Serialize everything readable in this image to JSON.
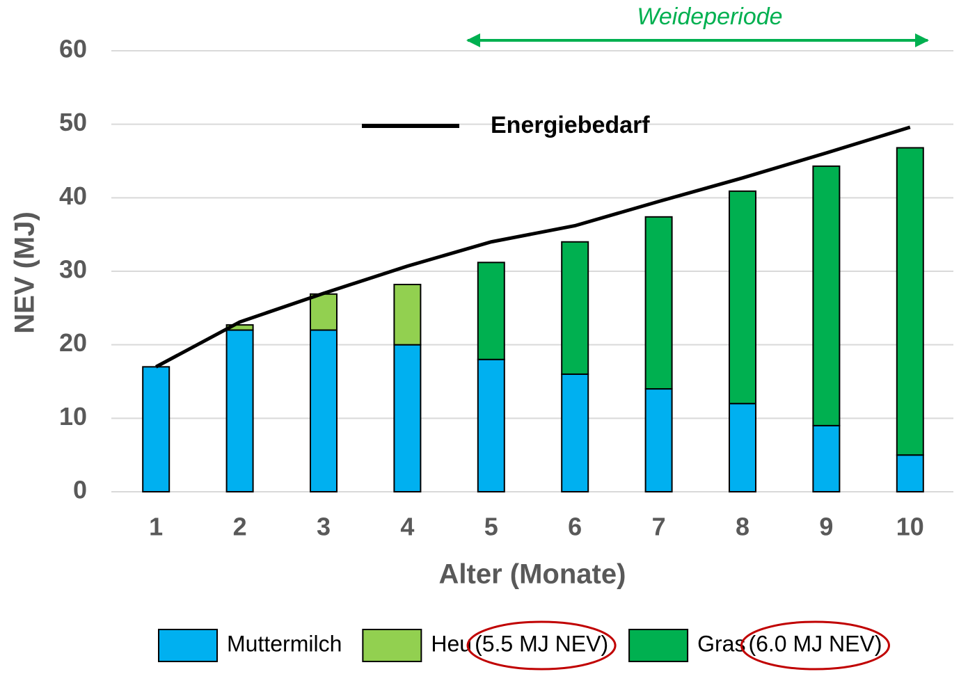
{
  "chart_data": {
    "type": "stacked-bar-line",
    "xlabel": "Alter (Monate)",
    "ylabel": "NEV (MJ)",
    "annotation": "Weideperiode",
    "categories": [
      "1",
      "2",
      "3",
      "4",
      "5",
      "6",
      "7",
      "8",
      "9",
      "10"
    ],
    "series": [
      {
        "name": "Muttermilch",
        "color": "#00b0f0",
        "values": [
          17,
          22,
          22,
          20,
          18,
          16,
          14,
          12,
          9,
          5
        ]
      },
      {
        "name": "Heu",
        "note": "(5.5 MJ NEV)",
        "color": "#92d050",
        "values": [
          0,
          0.7,
          4.9,
          8.2,
          0,
          0,
          0,
          0,
          0,
          0
        ]
      },
      {
        "name": "Gras",
        "note": "(6.0 MJ NEV)",
        "color": "#00b050",
        "values": [
          0,
          0,
          0,
          0,
          13.2,
          18,
          23.4,
          28.9,
          35.3,
          41.8
        ]
      }
    ],
    "line": {
      "name": "Energiebedarf",
      "color": "#000000",
      "values": [
        17,
        23.1,
        27,
        30.7,
        34,
        36.2,
        39.5,
        42.7,
        46.1,
        49.6
      ]
    },
    "ylim": [
      0,
      60
    ],
    "yticks": [
      0,
      10,
      20,
      30,
      40,
      50,
      60
    ],
    "grid": true
  }
}
